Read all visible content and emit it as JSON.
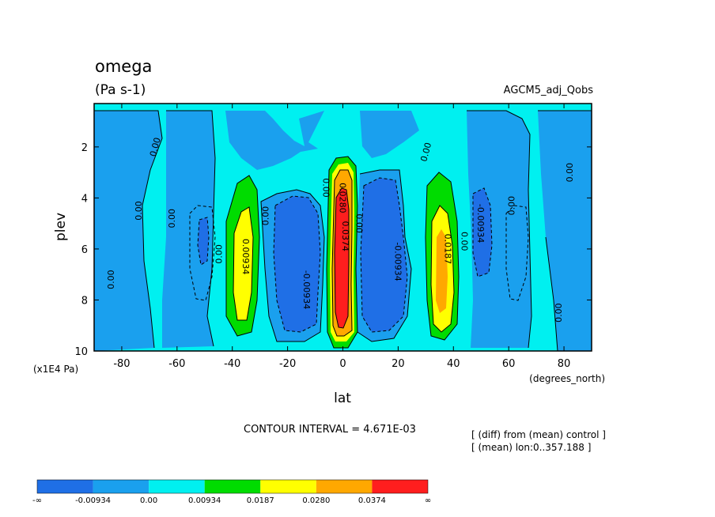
{
  "header": {
    "variable_name": "omega",
    "units": "(Pa s-1)",
    "dataset": "AGCM5_adj_Qobs"
  },
  "footer": {
    "contour_interval": "CONTOUR INTERVAL = 4.671E-03",
    "note_line1": "[ (diff) from (mean) control ]",
    "note_line2": "[ (mean) lon:0..357.188 ]"
  },
  "chart_data": {
    "type": "contour",
    "xlabel": "lat",
    "x_units": "(degrees_north)",
    "ylabel": "plev",
    "y_units": "(x1E4 Pa)",
    "xlim": [
      -90,
      90
    ],
    "ylim": [
      10,
      0.3
    ],
    "x_ticks": [
      -80,
      -60,
      -40,
      -20,
      0,
      20,
      40,
      60,
      80
    ],
    "y_ticks": [
      2,
      4,
      6,
      8,
      10
    ],
    "contour_interval": 0.004671,
    "fill_levels": [
      {
        "name": "neg-high",
        "color": "#1f6fe6"
      },
      {
        "name": "neg-low",
        "color": "#1aa0ee"
      },
      {
        "name": "zero",
        "color": "#00f0f0"
      },
      {
        "name": "pos-1",
        "color": "#00dc00"
      },
      {
        "name": "pos-2",
        "color": "#ffff00"
      },
      {
        "name": "pos-3",
        "color": "#ffa800"
      },
      {
        "name": "pos-4",
        "color": "#ff1e1e"
      }
    ],
    "colorbar_labels": [
      "-∞",
      "-0.00934",
      "0.00",
      "0.00934",
      "0.0187",
      "0.0280",
      "0.0374",
      "∞"
    ],
    "contour_labels": [
      {
        "text": "0.00",
        "lat": -84,
        "plev": 7.2,
        "angle": -90
      },
      {
        "text": "0.00",
        "lat": -74,
        "plev": 4.5,
        "angle": -90
      },
      {
        "text": "0.00",
        "lat": -68,
        "plev": 2.0,
        "angle": -75
      },
      {
        "text": "0.00",
        "lat": -62,
        "plev": 4.8,
        "angle": -90
      },
      {
        "text": "0.00",
        "lat": -45,
        "plev": 6.2,
        "angle": -90
      },
      {
        "text": "0.00934",
        "lat": -35,
        "plev": 6.3,
        "angle": 90
      },
      {
        "text": "0.00",
        "lat": -28,
        "plev": 4.7,
        "angle": -90
      },
      {
        "text": "-0.00934",
        "lat": -13,
        "plev": 7.6,
        "angle": 90
      },
      {
        "text": "0.00",
        "lat": -6,
        "plev": 3.6,
        "angle": 90
      },
      {
        "text": "0.0280",
        "lat": 0,
        "plev": 4.0,
        "angle": 90
      },
      {
        "text": "0.0374",
        "lat": 1,
        "plev": 5.5,
        "angle": 90
      },
      {
        "text": "0.00",
        "lat": 6,
        "plev": 5.0,
        "angle": 90
      },
      {
        "text": "-0.00934",
        "lat": 20,
        "plev": 6.5,
        "angle": 90
      },
      {
        "text": "0.00",
        "lat": 30,
        "plev": 2.2,
        "angle": -75
      },
      {
        "text": "0.0187",
        "lat": 38,
        "plev": 6.0,
        "angle": 90
      },
      {
        "text": "0.00",
        "lat": 44,
        "plev": 5.7,
        "angle": 90
      },
      {
        "text": "-0.00934",
        "lat": 50,
        "plev": 5.0,
        "angle": 90
      },
      {
        "text": "0.00",
        "lat": 61,
        "plev": 4.3,
        "angle": -90
      },
      {
        "text": "0.00",
        "lat": 82,
        "plev": 3.0,
        "angle": -90
      },
      {
        "text": "0.00",
        "lat": 78,
        "plev": 8.5,
        "angle": -90
      }
    ]
  }
}
